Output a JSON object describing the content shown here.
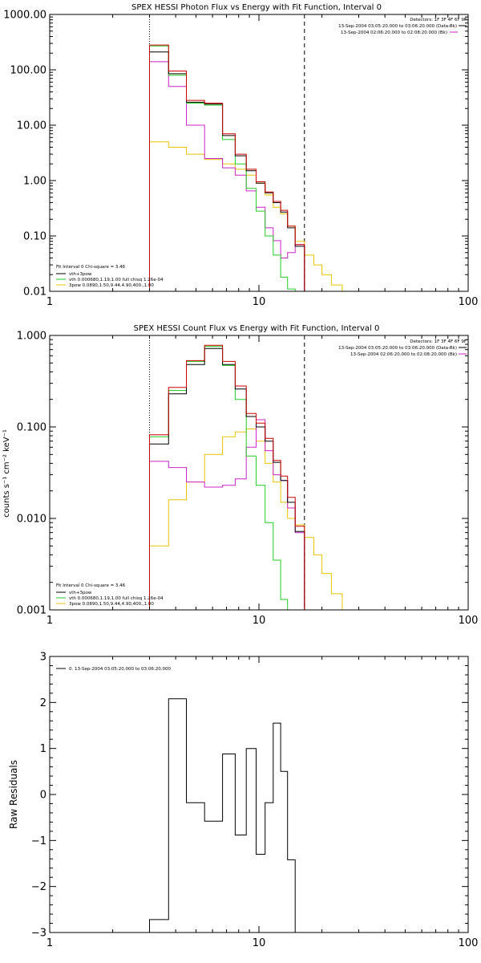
{
  "chart_data": [
    {
      "type": "line",
      "title": "SPEX HESSI Photon Flux vs Energy with Fit Function, Interval 0",
      "xlabel": "",
      "ylabel": "",
      "xscale": "log",
      "yscale": "log",
      "xlim": [
        1,
        100
      ],
      "ylim": [
        0.01,
        1000
      ],
      "xticks": [
        {
          "v": 1,
          "label": "1"
        },
        {
          "v": 10,
          "label": "10"
        },
        {
          "v": 100,
          "label": "100"
        }
      ],
      "yticks": [
        {
          "v": 0.01,
          "label": "0.01"
        },
        {
          "v": 0.1,
          "label": "0.10"
        },
        {
          "v": 1,
          "label": "1.00"
        },
        {
          "v": 10,
          "label": "10.00"
        },
        {
          "v": 100,
          "label": "100.00"
        },
        {
          "v": 1000,
          "label": "1000.00"
        }
      ],
      "vlines": [
        {
          "x": 3.0,
          "style": "dotted"
        },
        {
          "x": 16.5,
          "style": "dashed"
        }
      ],
      "edges": [
        3.0,
        3.7,
        4.5,
        5.5,
        6.7,
        7.7,
        8.7,
        9.7,
        10.7,
        11.7,
        12.7,
        13.7,
        14.9,
        16.5,
        18.3,
        20.0,
        22.2,
        25.0
      ],
      "series": [
        {
          "name": "",
          "color": "#000000",
          "values": [
            210,
            85,
            26,
            24,
            6.5,
            2.8,
            1.5,
            0.9,
            0.6,
            0.4,
            0.27,
            0.14,
            0.065
          ]
        },
        {
          "name": "",
          "color": "#cc0000",
          "values": [
            280,
            95,
            28,
            25,
            7.0,
            3.0,
            1.6,
            0.95,
            0.62,
            0.42,
            0.29,
            0.15,
            0.07
          ]
        },
        {
          "name": "vth+3pow",
          "color": "#000000",
          "values": []
        },
        {
          "name": "vth 0.000680,1.19,1.00  full chisq 1.26e-04",
          "color": "#22cc22",
          "values": [
            270,
            80,
            25,
            23,
            5.5,
            2.0,
            0.72,
            0.28,
            0.1,
            0.045,
            0.018,
            0.011,
            0.01
          ]
        },
        {
          "name": "3pow 0.0890,1.50,9.44,4.90,400.,1.00",
          "color": "#e8c400",
          "values": [
            5.0,
            4.0,
            3.0,
            2.4,
            2.0,
            1.6,
            1.25,
            0.9,
            0.55,
            0.33,
            0.25,
            0.15,
            0.08,
            0.045,
            0.03,
            0.02,
            0.013
          ]
        },
        {
          "name": "",
          "color": "#cc22cc",
          "values": [
            140,
            50,
            10.0,
            2.5,
            1.7,
            1.25,
            0.65,
            0.33,
            0.14,
            0.082,
            0.04,
            0.05,
            0.07
          ]
        }
      ],
      "legend_position": "bottom-left",
      "fit_header": "Fit Interval  0    Chi-square = 3.46",
      "top_right_notes": [
        {
          "text": "Detectors: 1F 3F 4F 6F 9F",
          "color": "#000000"
        },
        {
          "text": "13-Sep-2004 03:05:20.000 to 03:06:20.000 (Data-Bk)",
          "color": "#000000"
        },
        {
          "text": "13-Sep-2004 02:06:20.000 to 02:08:20.000 (Bk)",
          "color": "#cc22cc"
        }
      ]
    },
    {
      "type": "line",
      "title": "SPEX HESSI Count Flux vs Energy with Fit Function, Interval 0",
      "xlabel": "",
      "ylabel": "counts s⁻¹ cm⁻² keV⁻¹",
      "xscale": "log",
      "yscale": "log",
      "xlim": [
        1,
        100
      ],
      "ylim": [
        0.001,
        1.0
      ],
      "xticks": [
        {
          "v": 1,
          "label": "1"
        },
        {
          "v": 10,
          "label": "10"
        },
        {
          "v": 100,
          "label": "100"
        }
      ],
      "yticks": [
        {
          "v": 0.001,
          "label": "0.001"
        },
        {
          "v": 0.01,
          "label": "0.010"
        },
        {
          "v": 0.1,
          "label": "0.100"
        },
        {
          "v": 1,
          "label": "1.000"
        }
      ],
      "vlines": [
        {
          "x": 3.0,
          "style": "dotted"
        },
        {
          "x": 16.5,
          "style": "dashed"
        }
      ],
      "edges": [
        3.0,
        3.7,
        4.5,
        5.5,
        6.7,
        7.7,
        8.7,
        9.7,
        10.7,
        11.7,
        12.7,
        13.7,
        14.9,
        16.5,
        18.3,
        20.0,
        22.2,
        25.0
      ],
      "series": [
        {
          "name": "",
          "color": "#000000",
          "values": [
            0.065,
            0.23,
            0.48,
            0.72,
            0.48,
            0.26,
            0.13,
            0.1,
            0.07,
            0.041,
            0.026,
            0.015,
            0.0072
          ]
        },
        {
          "name": "",
          "color": "#cc0000",
          "values": [
            0.082,
            0.27,
            0.53,
            0.78,
            0.52,
            0.28,
            0.14,
            0.11,
            0.075,
            0.043,
            0.029,
            0.017,
            0.0082
          ]
        },
        {
          "name": "vth+3pow",
          "color": "#000000",
          "values": []
        },
        {
          "name": "vth 0.000680,1.19,1.00  full chisq 1.26e-04",
          "color": "#22cc22",
          "values": [
            0.078,
            0.25,
            0.52,
            0.76,
            0.47,
            0.2,
            0.048,
            0.023,
            0.009,
            0.0035,
            0.0013,
            0.001,
            0.001
          ]
        },
        {
          "name": "3pow 0.0890,1.50,9.44,4.90,400.,1.00",
          "color": "#e8c400",
          "values": [
            0.005,
            0.016,
            0.025,
            0.05,
            0.078,
            0.088,
            0.095,
            0.07,
            0.04,
            0.025,
            0.015,
            0.01,
            0.0085,
            0.0062,
            0.004,
            0.0025,
            0.0015
          ]
        },
        {
          "name": "",
          "color": "#cc22cc",
          "values": [
            0.042,
            0.036,
            0.025,
            0.022,
            0.023,
            0.027,
            0.06,
            0.12,
            0.055,
            0.03,
            0.026,
            0.013,
            0.007
          ]
        }
      ],
      "legend_position": "bottom-left",
      "fit_header": "Fit Interval  0    Chi-square = 3.46",
      "top_right_notes": [
        {
          "text": "Detectors: 1F 3F 4F 6F 9F",
          "color": "#000000"
        },
        {
          "text": "13-Sep-2004 03:05:20.000 to 03:06:20.000 (Data-Bk)",
          "color": "#000000"
        },
        {
          "text": "13-Sep-2004 02:06:20.000 to 02:08:20.000 (Bk)",
          "color": "#cc22cc"
        }
      ]
    },
    {
      "type": "line",
      "title": "",
      "xlabel": "",
      "ylabel": "Raw Residuals",
      "xscale": "log",
      "yscale": "linear",
      "xlim": [
        1,
        100
      ],
      "ylim": [
        -3,
        3
      ],
      "xticks": [
        {
          "v": 1,
          "label": "1"
        },
        {
          "v": 10,
          "label": "10"
        },
        {
          "v": 100,
          "label": "100"
        }
      ],
      "yticks": [
        {
          "v": -3,
          "label": "−3"
        },
        {
          "v": -2,
          "label": "−2"
        },
        {
          "v": -1,
          "label": "−1"
        },
        {
          "v": 0,
          "label": "0"
        },
        {
          "v": 1,
          "label": "1"
        },
        {
          "v": 2,
          "label": "2"
        },
        {
          "v": 3,
          "label": "3"
        }
      ],
      "vlines": [],
      "edges": [
        3.0,
        3.7,
        4.5,
        5.5,
        6.7,
        7.7,
        8.7,
        9.7,
        10.7,
        11.7,
        12.7,
        13.7,
        14.9,
        16.5
      ],
      "series": [
        {
          "name": "0. 13-Sep-2004 03:05:20.000 to 03:06:20.000",
          "color": "#000000",
          "values": [
            -2.72,
            2.08,
            -0.18,
            -0.58,
            0.88,
            -0.88,
            1.0,
            -1.3,
            -0.18,
            1.55,
            0.5,
            -1.42,
            -3.1
          ]
        }
      ],
      "legend_position": "top-left",
      "fit_header": "",
      "top_right_notes": []
    }
  ]
}
